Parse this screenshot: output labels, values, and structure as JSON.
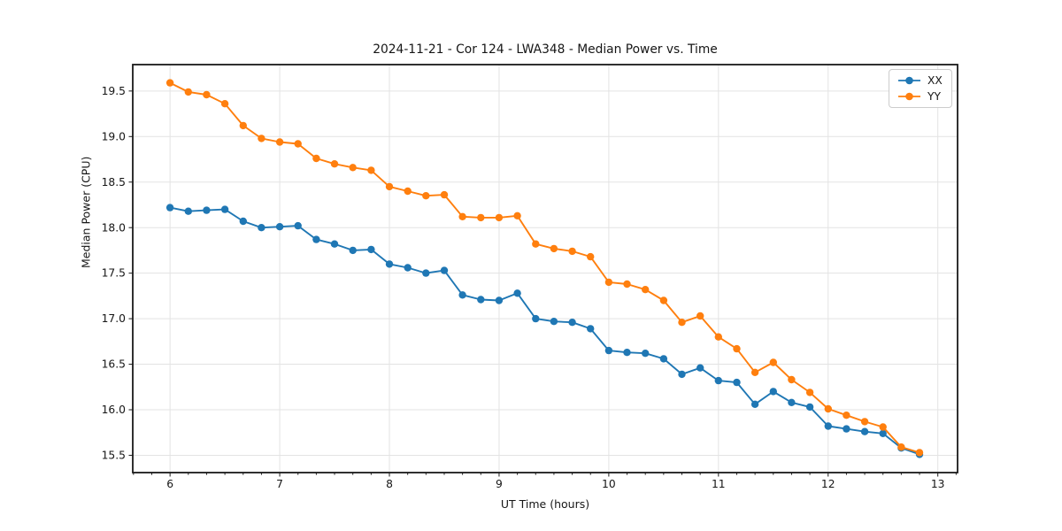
{
  "title": "2024-11-21 - Cor 124 - LWA348 - Median Power vs. Time",
  "colors": {
    "series_xx": "#1f77b4",
    "series_yy": "#ff7f0e",
    "grid": "#e3e3e3",
    "spine": "#1a1a1a",
    "text": "#161616",
    "background": "#ffffff"
  },
  "chart_data": {
    "type": "line",
    "title": "2024-11-21 - Cor 124 - LWA348 - Median Power vs. Time",
    "xlabel": "UT Time (hours)",
    "ylabel": "Median Power (CPU)",
    "grid": true,
    "legend_position": "upper right",
    "xlim": [
      5.66,
      13.18
    ],
    "ylim": [
      15.31,
      19.79
    ],
    "xticks": [
      6,
      7,
      8,
      9,
      10,
      11,
      12,
      13
    ],
    "yticks": [
      15.5,
      16.0,
      16.5,
      17.0,
      17.5,
      18.0,
      18.5,
      19.0,
      19.5
    ],
    "minor_x_step": 0.166667,
    "x": [
      6.0,
      6.1667,
      6.3333,
      6.5,
      6.6667,
      6.8333,
      7.0,
      7.1667,
      7.3333,
      7.5,
      7.6667,
      7.8333,
      8.0,
      8.1667,
      8.3333,
      8.5,
      8.6667,
      8.8333,
      9.0,
      9.1667,
      9.3333,
      9.5,
      9.6667,
      9.8333,
      10.0,
      10.1667,
      10.3333,
      10.5,
      10.6667,
      10.8333,
      11.0,
      11.1667,
      11.3333,
      11.5,
      11.6667,
      11.8333,
      12.0,
      12.1667,
      12.3333,
      12.5,
      12.6667,
      12.8333
    ],
    "series": [
      {
        "name": "XX",
        "color": "#1f77b4",
        "values": [
          18.22,
          18.18,
          18.19,
          18.2,
          18.07,
          18.0,
          18.01,
          18.02,
          17.87,
          17.82,
          17.75,
          17.76,
          17.6,
          17.56,
          17.5,
          17.53,
          17.26,
          17.21,
          17.2,
          17.28,
          17.0,
          16.97,
          16.96,
          16.89,
          16.65,
          16.63,
          16.62,
          16.56,
          16.39,
          16.46,
          16.32,
          16.3,
          16.06,
          16.2,
          16.08,
          16.03,
          15.82,
          15.79,
          15.76,
          15.74,
          15.58,
          15.51
        ]
      },
      {
        "name": "YY",
        "color": "#ff7f0e",
        "values": [
          19.59,
          19.49,
          19.46,
          19.36,
          19.12,
          18.98,
          18.94,
          18.92,
          18.76,
          18.7,
          18.66,
          18.63,
          18.45,
          18.4,
          18.35,
          18.36,
          18.12,
          18.11,
          18.11,
          18.13,
          17.82,
          17.77,
          17.74,
          17.68,
          17.4,
          17.38,
          17.32,
          17.2,
          16.96,
          17.03,
          16.8,
          16.67,
          16.41,
          16.52,
          16.33,
          16.19,
          16.01,
          15.94,
          15.87,
          15.81,
          15.59,
          15.53
        ]
      }
    ]
  }
}
